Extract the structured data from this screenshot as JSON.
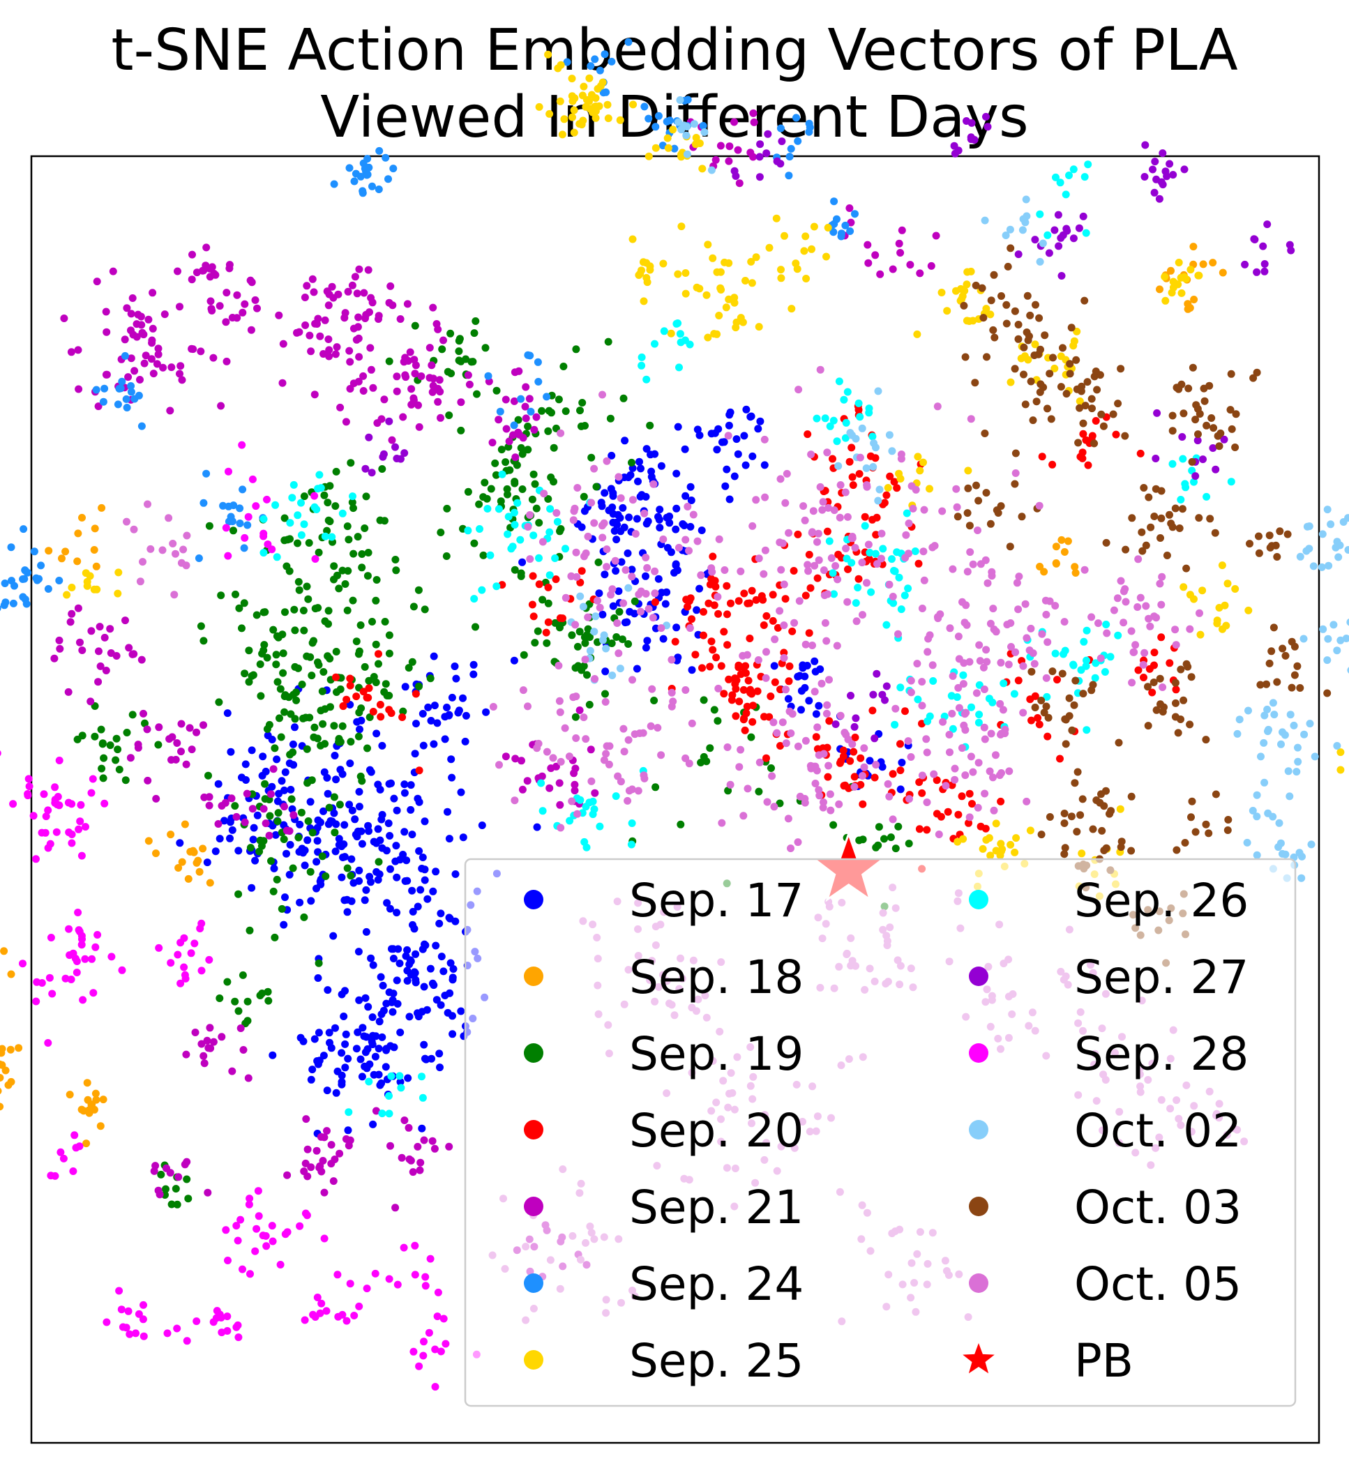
{
  "chart_data": {
    "type": "scatter",
    "title": [
      "t-SNE Action Embedding Vectors of PLA",
      "Viewed In Different Days"
    ],
    "xlabel": "",
    "ylabel": "",
    "xlim": [
      -1,
      1
    ],
    "ylim": [
      -1,
      1
    ],
    "grid": false,
    "axis_ticks": false,
    "legend": {
      "placement": "lower-right",
      "columns": 2
    },
    "series": [
      {
        "name": "Sep. 17",
        "color": "#0000ff",
        "marker": "dot",
        "clusters": [
          [
            -0.48,
            -0.06,
            0.12,
            160
          ],
          [
            -0.63,
            -0.02,
            0.08,
            60
          ],
          [
            -0.38,
            -0.28,
            0.1,
            90
          ],
          [
            -0.49,
            -0.4,
            0.07,
            70
          ],
          [
            -0.05,
            0.44,
            0.08,
            90
          ],
          [
            -0.04,
            0.3,
            0.06,
            40
          ],
          [
            0.08,
            0.56,
            0.05,
            25
          ],
          [
            0.2,
            0.18,
            0.04,
            20
          ],
          [
            -0.36,
            0.15,
            0.05,
            30
          ],
          [
            0.3,
            0.05,
            0.05,
            15
          ]
        ]
      },
      {
        "name": "Sep. 18",
        "color": "#ffa500",
        "marker": "dot",
        "clusters": [
          [
            -1.07,
            -0.44,
            0.04,
            40
          ],
          [
            -0.91,
            -0.48,
            0.03,
            15
          ],
          [
            -0.78,
            -0.09,
            0.04,
            15
          ],
          [
            -1.08,
            -0.25,
            0.03,
            12
          ],
          [
            -0.93,
            0.4,
            0.04,
            10
          ],
          [
            0.8,
            0.81,
            0.04,
            15
          ],
          [
            0.6,
            0.38,
            0.03,
            10
          ]
        ]
      },
      {
        "name": "Sep. 19",
        "color": "#007f00",
        "marker": "dot",
        "clusters": [
          [
            -0.56,
            0.2,
            0.12,
            140
          ],
          [
            -0.52,
            0.4,
            0.08,
            60
          ],
          [
            -0.24,
            0.47,
            0.08,
            60
          ],
          [
            -0.6,
            -0.08,
            0.08,
            40
          ],
          [
            -0.15,
            0.25,
            0.06,
            40
          ],
          [
            -0.33,
            0.7,
            0.06,
            25
          ],
          [
            -0.16,
            0.6,
            0.06,
            20
          ],
          [
            -0.88,
            0.1,
            0.05,
            20
          ],
          [
            -0.65,
            -0.32,
            0.04,
            12
          ],
          [
            0.05,
            0.06,
            0.08,
            20
          ],
          [
            0.3,
            -0.05,
            0.06,
            15
          ],
          [
            -0.78,
            -0.6,
            0.03,
            10
          ]
        ]
      },
      {
        "name": "Sep. 20",
        "color": "#ff0000",
        "marker": "dot",
        "clusters": [
          [
            0.1,
            0.28,
            0.08,
            60
          ],
          [
            0.12,
            0.16,
            0.05,
            35
          ],
          [
            0.28,
            0.4,
            0.07,
            40
          ],
          [
            0.27,
            0.08,
            0.06,
            35
          ],
          [
            0.43,
            -0.01,
            0.05,
            25
          ],
          [
            0.27,
            0.54,
            0.05,
            20
          ],
          [
            -0.48,
            0.15,
            0.05,
            20
          ],
          [
            0.65,
            0.55,
            0.04,
            15
          ],
          [
            0.75,
            0.2,
            0.04,
            12
          ],
          [
            -0.2,
            0.3,
            0.05,
            15
          ],
          [
            0.56,
            0.15,
            0.05,
            15
          ]
        ]
      },
      {
        "name": "Sep. 21",
        "color": "#bf00bf",
        "marker": "dot",
        "clusters": [
          [
            -0.82,
            0.71,
            0.08,
            60
          ],
          [
            -0.51,
            0.73,
            0.08,
            70
          ],
          [
            -0.72,
            0.8,
            0.05,
            30
          ],
          [
            -0.4,
            0.64,
            0.06,
            40
          ],
          [
            -0.9,
            0.24,
            0.05,
            25
          ],
          [
            -0.65,
            -0.02,
            0.05,
            20
          ],
          [
            -0.78,
            0.1,
            0.05,
            20
          ],
          [
            -0.55,
            -0.55,
            0.05,
            25
          ],
          [
            -0.4,
            -0.56,
            0.04,
            15
          ],
          [
            -0.72,
            -0.38,
            0.04,
            15
          ],
          [
            -0.8,
            -0.58,
            0.03,
            10
          ],
          [
            -0.18,
            0.05,
            0.06,
            25
          ],
          [
            0.35,
            0.85,
            0.05,
            15
          ],
          [
            0.09,
            1.03,
            0.05,
            15
          ],
          [
            -0.19,
            -0.69,
            0.04,
            12
          ],
          [
            -0.25,
            0.6,
            0.05,
            20
          ]
        ]
      },
      {
        "name": "Sep. 24",
        "color": "#1e90ff",
        "marker": "dot",
        "clusters": [
          [
            -1.02,
            0.34,
            0.04,
            25
          ],
          [
            -0.48,
            0.98,
            0.03,
            20
          ],
          [
            -0.01,
            1.05,
            0.03,
            15
          ],
          [
            -0.85,
            0.64,
            0.04,
            15
          ],
          [
            -0.7,
            0.45,
            0.05,
            15
          ],
          [
            -0.23,
            0.64,
            0.04,
            10
          ],
          [
            -0.12,
            1.14,
            0.03,
            10
          ],
          [
            0.18,
            1.02,
            0.03,
            10
          ],
          [
            0.26,
            0.9,
            0.03,
            10
          ]
        ]
      },
      {
        "name": "Sep. 25",
        "color": "#ffd700",
        "marker": "dot",
        "clusters": [
          [
            -0.13,
            1.08,
            0.05,
            40
          ],
          [
            0.08,
            0.78,
            0.05,
            30
          ],
          [
            0.01,
            1.02,
            0.03,
            15
          ],
          [
            0.19,
            0.85,
            0.04,
            15
          ],
          [
            0.46,
            0.77,
            0.04,
            20
          ],
          [
            0.59,
            0.68,
            0.04,
            20
          ],
          [
            0.79,
            0.8,
            0.03,
            15
          ],
          [
            0.5,
            -0.07,
            0.04,
            20
          ],
          [
            -0.03,
            0.84,
            0.04,
            15
          ],
          [
            0.85,
            0.3,
            0.04,
            15
          ],
          [
            1.07,
            0.07,
            0.03,
            10
          ],
          [
            -0.92,
            0.33,
            0.03,
            10
          ],
          [
            0.68,
            -0.09,
            0.04,
            10
          ],
          [
            0.38,
            0.5,
            0.04,
            10
          ]
        ]
      },
      {
        "name": "Sep. 26",
        "color": "#00ffff",
        "marker": "dot",
        "clusters": [
          [
            -0.25,
            0.4,
            0.06,
            30
          ],
          [
            0.33,
            0.35,
            0.06,
            30
          ],
          [
            0.62,
            0.21,
            0.05,
            25
          ],
          [
            0.44,
            0.14,
            0.06,
            25
          ],
          [
            -0.12,
            -0.01,
            0.05,
            20
          ],
          [
            -0.58,
            0.45,
            0.05,
            20
          ],
          [
            0.27,
            0.6,
            0.04,
            15
          ],
          [
            -0.45,
            -0.45,
            0.04,
            10
          ],
          [
            0.0,
            0.72,
            0.04,
            12
          ],
          [
            0.62,
            0.95,
            0.04,
            10
          ],
          [
            0.8,
            0.5,
            0.04,
            10
          ]
        ]
      },
      {
        "name": "Sep. 27",
        "color": "#9400d3",
        "marker": "dot",
        "clusters": [
          [
            0.6,
            0.88,
            0.03,
            15
          ],
          [
            0.75,
            0.98,
            0.03,
            15
          ],
          [
            0.47,
            1.03,
            0.03,
            10
          ],
          [
            0.14,
            1.0,
            0.03,
            10
          ],
          [
            0.9,
            0.85,
            0.03,
            10
          ],
          [
            0.82,
            0.54,
            0.04,
            10
          ],
          [
            -0.45,
            0.54,
            0.04,
            10
          ],
          [
            0.3,
            0.15,
            0.04,
            10
          ]
        ]
      },
      {
        "name": "Sep. 28",
        "color": "#ff00ff",
        "marker": "dot",
        "clusters": [
          [
            -0.96,
            -0.02,
            0.05,
            35
          ],
          [
            -1.1,
            0.03,
            0.04,
            20
          ],
          [
            -0.92,
            -0.26,
            0.06,
            30
          ],
          [
            -0.76,
            -0.24,
            0.04,
            15
          ],
          [
            -0.64,
            -0.68,
            0.05,
            25
          ],
          [
            -0.82,
            -0.81,
            0.04,
            15
          ],
          [
            -0.71,
            -0.81,
            0.03,
            12
          ],
          [
            -0.54,
            -0.8,
            0.04,
            15
          ],
          [
            -0.38,
            -0.86,
            0.04,
            12
          ],
          [
            -0.65,
            0.45,
            0.05,
            15
          ],
          [
            -0.4,
            -0.75,
            0.04,
            10
          ],
          [
            -0.95,
            -0.55,
            0.03,
            8
          ]
        ]
      },
      {
        "name": "Oct. 02",
        "color": "#87cefa",
        "marker": "dot",
        "clusters": [
          [
            0.94,
            0.1,
            0.05,
            25
          ],
          [
            1.02,
            0.4,
            0.04,
            20
          ],
          [
            1.1,
            0.1,
            0.04,
            15
          ],
          [
            1.05,
            0.25,
            0.04,
            15
          ],
          [
            0.9,
            -0.05,
            0.04,
            10
          ],
          [
            0.3,
            0.55,
            0.05,
            15
          ],
          [
            -0.12,
            0.25,
            0.05,
            15
          ],
          [
            0.03,
            1.04,
            0.03,
            10
          ],
          [
            0.55,
            0.9,
            0.04,
            10
          ],
          [
            0.97,
            -0.1,
            0.03,
            10
          ]
        ]
      },
      {
        "name": "Oct. 03",
        "color": "#8b4513",
        "marker": "dot",
        "clusters": [
          [
            0.62,
            0.64,
            0.08,
            40
          ],
          [
            0.84,
            0.59,
            0.05,
            30
          ],
          [
            0.54,
            0.7,
            0.05,
            20
          ],
          [
            0.77,
            0.43,
            0.06,
            25
          ],
          [
            0.64,
            -0.04,
            0.05,
            35
          ],
          [
            0.62,
            0.15,
            0.05,
            20
          ],
          [
            0.78,
            0.15,
            0.05,
            20
          ],
          [
            0.95,
            0.21,
            0.04,
            15
          ],
          [
            0.49,
            0.79,
            0.04,
            15
          ],
          [
            0.76,
            -0.18,
            0.04,
            12
          ],
          [
            0.82,
            -0.04,
            0.04,
            10
          ],
          [
            0.5,
            0.45,
            0.05,
            15
          ],
          [
            0.92,
            0.4,
            0.03,
            10
          ]
        ]
      },
      {
        "name": "Oct. 05",
        "color": "#da70d6",
        "marker": "dot",
        "clusters": [
          [
            0.25,
            0.4,
            0.15,
            120
          ],
          [
            0.5,
            0.25,
            0.1,
            70
          ],
          [
            -0.1,
            0.4,
            0.1,
            60
          ],
          [
            -0.1,
            0.1,
            0.1,
            60
          ],
          [
            0.2,
            0.05,
            0.1,
            60
          ],
          [
            0.45,
            0.05,
            0.08,
            45
          ],
          [
            0.7,
            0.28,
            0.07,
            35
          ],
          [
            -0.05,
            -0.25,
            0.1,
            40
          ],
          [
            0.3,
            -0.25,
            0.1,
            40
          ],
          [
            0.55,
            -0.3,
            0.08,
            30
          ],
          [
            0.7,
            -0.45,
            0.08,
            30
          ],
          [
            0.1,
            -0.5,
            0.1,
            40
          ],
          [
            -0.15,
            -0.7,
            0.08,
            25
          ],
          [
            0.35,
            -0.7,
            0.08,
            25
          ],
          [
            -0.8,
            0.4,
            0.05,
            15
          ],
          [
            0.84,
            -0.48,
            0.04,
            12
          ]
        ]
      },
      {
        "name": "PB",
        "color": "#ff0000",
        "marker": "star",
        "points": [
          [
            0.27,
            -0.11
          ]
        ]
      }
    ]
  }
}
